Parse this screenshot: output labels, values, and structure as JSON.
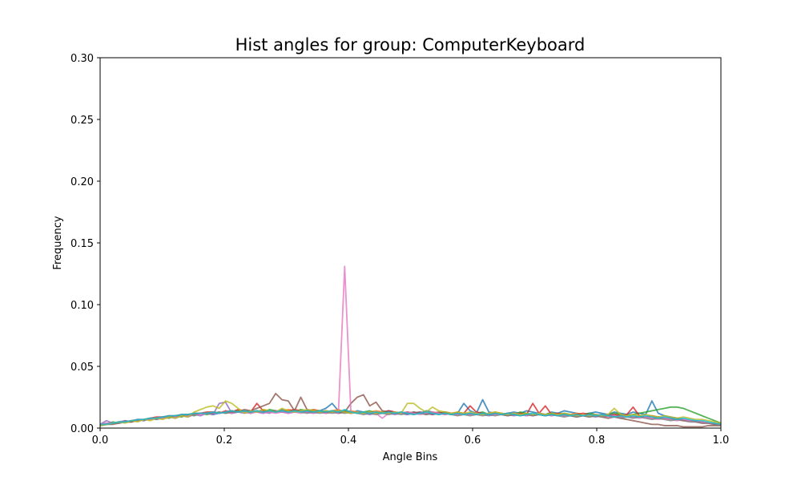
{
  "chart_data": {
    "type": "line",
    "title": "Hist angles for group: ComputerKeyboard",
    "xlabel": "Angle Bins",
    "ylabel": "Frequency",
    "xlim": [
      0.0,
      1.0
    ],
    "ylim": [
      0.0,
      0.3
    ],
    "x_ticks": [
      "0.0",
      "0.2",
      "0.4",
      "0.6",
      "0.8",
      "1.0"
    ],
    "y_ticks": [
      "0.00",
      "0.05",
      "0.10",
      "0.15",
      "0.20",
      "0.25",
      "0.30"
    ],
    "grid": false,
    "legend": "none",
    "colors": [
      "#1f77b4",
      "#ff7f0e",
      "#2ca02c",
      "#d62728",
      "#9467bd",
      "#8c564b",
      "#e377c2",
      "#7f7f7f",
      "#bcbd22",
      "#17becf"
    ],
    "series": [
      {
        "values": [
          0.003,
          0.004,
          0.004,
          0.005,
          0.005,
          0.006,
          0.006,
          0.007,
          0.008,
          0.008,
          0.009,
          0.01,
          0.009,
          0.011,
          0.01,
          0.011,
          0.012,
          0.012,
          0.011,
          0.012,
          0.013,
          0.012,
          0.013,
          0.013,
          0.014,
          0.013,
          0.012,
          0.014,
          0.013,
          0.015,
          0.014,
          0.013,
          0.014,
          0.013,
          0.015,
          0.014,
          0.016,
          0.02,
          0.014,
          0.013,
          0.012,
          0.014,
          0.013,
          0.012,
          0.013,
          0.012,
          0.014,
          0.013,
          0.012,
          0.011,
          0.013,
          0.012,
          0.014,
          0.013,
          0.012,
          0.013,
          0.011,
          0.012,
          0.02,
          0.014,
          0.012,
          0.023,
          0.013,
          0.012,
          0.011,
          0.012,
          0.013,
          0.012,
          0.014,
          0.013,
          0.012,
          0.011,
          0.013,
          0.012,
          0.014,
          0.013,
          0.012,
          0.011,
          0.012,
          0.013,
          0.012,
          0.011,
          0.013,
          0.012,
          0.011,
          0.013,
          0.012,
          0.011,
          0.022,
          0.012,
          0.01,
          0.009,
          0.008,
          0.007,
          0.006,
          0.005,
          0.005,
          0.004,
          0.003,
          0.004
        ]
      },
      {
        "values": [
          0.002,
          0.003,
          0.004,
          0.004,
          0.005,
          0.005,
          0.006,
          0.007,
          0.007,
          0.008,
          0.008,
          0.009,
          0.01,
          0.01,
          0.011,
          0.011,
          0.012,
          0.012,
          0.013,
          0.012,
          0.013,
          0.014,
          0.013,
          0.014,
          0.014,
          0.013,
          0.015,
          0.014,
          0.013,
          0.014,
          0.015,
          0.014,
          0.013,
          0.014,
          0.015,
          0.014,
          0.013,
          0.014,
          0.015,
          0.013,
          0.014,
          0.013,
          0.012,
          0.013,
          0.014,
          0.013,
          0.012,
          0.013,
          0.012,
          0.013,
          0.012,
          0.013,
          0.012,
          0.013,
          0.012,
          0.011,
          0.012,
          0.013,
          0.012,
          0.011,
          0.012,
          0.011,
          0.012,
          0.013,
          0.012,
          0.011,
          0.012,
          0.011,
          0.012,
          0.011,
          0.012,
          0.011,
          0.012,
          0.011,
          0.01,
          0.011,
          0.012,
          0.011,
          0.01,
          0.011,
          0.01,
          0.011,
          0.01,
          0.011,
          0.01,
          0.009,
          0.01,
          0.009,
          0.008,
          0.009,
          0.008,
          0.007,
          0.007,
          0.006,
          0.006,
          0.005,
          0.005,
          0.004,
          0.004,
          0.003
        ]
      },
      {
        "values": [
          0.002,
          0.003,
          0.005,
          0.004,
          0.006,
          0.005,
          0.007,
          0.006,
          0.008,
          0.007,
          0.009,
          0.008,
          0.01,
          0.009,
          0.011,
          0.01,
          0.012,
          0.011,
          0.012,
          0.013,
          0.012,
          0.013,
          0.014,
          0.013,
          0.012,
          0.014,
          0.013,
          0.015,
          0.014,
          0.013,
          0.014,
          0.013,
          0.015,
          0.014,
          0.013,
          0.014,
          0.013,
          0.014,
          0.013,
          0.014,
          0.013,
          0.012,
          0.013,
          0.014,
          0.012,
          0.013,
          0.012,
          0.013,
          0.012,
          0.013,
          0.012,
          0.013,
          0.012,
          0.011,
          0.012,
          0.013,
          0.012,
          0.011,
          0.012,
          0.011,
          0.012,
          0.013,
          0.011,
          0.012,
          0.011,
          0.012,
          0.011,
          0.013,
          0.012,
          0.011,
          0.012,
          0.011,
          0.012,
          0.011,
          0.012,
          0.011,
          0.01,
          0.011,
          0.012,
          0.011,
          0.01,
          0.011,
          0.012,
          0.011,
          0.01,
          0.011,
          0.012,
          0.013,
          0.014,
          0.015,
          0.016,
          0.017,
          0.017,
          0.016,
          0.014,
          0.012,
          0.01,
          0.008,
          0.006,
          0.004
        ]
      },
      {
        "values": [
          0.003,
          0.003,
          0.004,
          0.005,
          0.005,
          0.006,
          0.007,
          0.007,
          0.008,
          0.009,
          0.009,
          0.01,
          0.01,
          0.011,
          0.011,
          0.012,
          0.012,
          0.013,
          0.013,
          0.012,
          0.014,
          0.013,
          0.015,
          0.014,
          0.013,
          0.02,
          0.014,
          0.013,
          0.014,
          0.013,
          0.014,
          0.015,
          0.014,
          0.013,
          0.014,
          0.013,
          0.012,
          0.013,
          0.014,
          0.013,
          0.012,
          0.013,
          0.012,
          0.013,
          0.012,
          0.013,
          0.014,
          0.013,
          0.012,
          0.013,
          0.012,
          0.013,
          0.012,
          0.011,
          0.012,
          0.013,
          0.012,
          0.011,
          0.012,
          0.018,
          0.013,
          0.012,
          0.011,
          0.012,
          0.011,
          0.012,
          0.011,
          0.012,
          0.011,
          0.02,
          0.012,
          0.018,
          0.011,
          0.012,
          0.011,
          0.01,
          0.011,
          0.012,
          0.011,
          0.01,
          0.011,
          0.01,
          0.011,
          0.01,
          0.011,
          0.017,
          0.01,
          0.009,
          0.01,
          0.009,
          0.008,
          0.008,
          0.007,
          0.006,
          0.006,
          0.005,
          0.004,
          0.004,
          0.003,
          0.003
        ]
      },
      {
        "values": [
          0.003,
          0.006,
          0.004,
          0.005,
          0.006,
          0.005,
          0.007,
          0.006,
          0.008,
          0.007,
          0.008,
          0.009,
          0.008,
          0.01,
          0.009,
          0.011,
          0.01,
          0.012,
          0.011,
          0.02,
          0.021,
          0.012,
          0.013,
          0.012,
          0.013,
          0.014,
          0.013,
          0.012,
          0.014,
          0.013,
          0.012,
          0.013,
          0.014,
          0.013,
          0.012,
          0.013,
          0.014,
          0.013,
          0.012,
          0.013,
          0.012,
          0.013,
          0.012,
          0.011,
          0.012,
          0.013,
          0.012,
          0.011,
          0.012,
          0.011,
          0.012,
          0.013,
          0.012,
          0.011,
          0.012,
          0.011,
          0.012,
          0.011,
          0.012,
          0.011,
          0.012,
          0.011,
          0.01,
          0.011,
          0.012,
          0.011,
          0.01,
          0.011,
          0.01,
          0.011,
          0.012,
          0.011,
          0.01,
          0.011,
          0.01,
          0.011,
          0.01,
          0.011,
          0.01,
          0.009,
          0.01,
          0.011,
          0.01,
          0.009,
          0.01,
          0.009,
          0.01,
          0.009,
          0.008,
          0.009,
          0.008,
          0.007,
          0.008,
          0.007,
          0.006,
          0.006,
          0.005,
          0.004,
          0.004,
          0.003
        ]
      },
      {
        "values": [
          0.002,
          0.003,
          0.003,
          0.004,
          0.005,
          0.005,
          0.006,
          0.007,
          0.007,
          0.008,
          0.009,
          0.009,
          0.01,
          0.01,
          0.011,
          0.011,
          0.012,
          0.012,
          0.013,
          0.012,
          0.013,
          0.014,
          0.013,
          0.015,
          0.014,
          0.016,
          0.018,
          0.02,
          0.028,
          0.023,
          0.022,
          0.014,
          0.025,
          0.015,
          0.014,
          0.013,
          0.014,
          0.013,
          0.012,
          0.013,
          0.02,
          0.025,
          0.027,
          0.018,
          0.021,
          0.014,
          0.013,
          0.012,
          0.013,
          0.012,
          0.013,
          0.012,
          0.011,
          0.012,
          0.013,
          0.012,
          0.011,
          0.012,
          0.011,
          0.012,
          0.011,
          0.012,
          0.011,
          0.012,
          0.011,
          0.01,
          0.011,
          0.012,
          0.011,
          0.01,
          0.011,
          0.01,
          0.011,
          0.01,
          0.011,
          0.01,
          0.009,
          0.01,
          0.009,
          0.01,
          0.009,
          0.008,
          0.009,
          0.008,
          0.007,
          0.006,
          0.005,
          0.004,
          0.003,
          0.003,
          0.002,
          0.002,
          0.002,
          0.001,
          0.001,
          0.001,
          0.001,
          0.002,
          0.002,
          0.002
        ]
      },
      {
        "values": [
          0.003,
          0.004,
          0.004,
          0.005,
          0.005,
          0.006,
          0.006,
          0.007,
          0.007,
          0.008,
          0.008,
          0.009,
          0.009,
          0.01,
          0.01,
          0.011,
          0.011,
          0.012,
          0.012,
          0.012,
          0.013,
          0.012,
          0.013,
          0.013,
          0.012,
          0.013,
          0.012,
          0.013,
          0.012,
          0.013,
          0.012,
          0.013,
          0.012,
          0.013,
          0.012,
          0.013,
          0.012,
          0.013,
          0.012,
          0.131,
          0.012,
          0.013,
          0.012,
          0.013,
          0.012,
          0.008,
          0.012,
          0.013,
          0.012,
          0.013,
          0.012,
          0.011,
          0.012,
          0.013,
          0.012,
          0.011,
          0.012,
          0.011,
          0.012,
          0.011,
          0.012,
          0.011,
          0.012,
          0.011,
          0.012,
          0.011,
          0.012,
          0.011,
          0.01,
          0.011,
          0.012,
          0.011,
          0.01,
          0.011,
          0.01,
          0.011,
          0.01,
          0.011,
          0.01,
          0.011,
          0.01,
          0.009,
          0.01,
          0.009,
          0.01,
          0.009,
          0.008,
          0.009,
          0.008,
          0.007,
          0.008,
          0.007,
          0.006,
          0.007,
          0.006,
          0.005,
          0.005,
          0.004,
          0.004,
          0.003
        ]
      },
      {
        "values": [
          0.002,
          0.003,
          0.004,
          0.004,
          0.005,
          0.006,
          0.006,
          0.007,
          0.008,
          0.008,
          0.009,
          0.009,
          0.01,
          0.01,
          0.011,
          0.011,
          0.012,
          0.012,
          0.012,
          0.013,
          0.012,
          0.013,
          0.013,
          0.014,
          0.013,
          0.014,
          0.013,
          0.014,
          0.013,
          0.014,
          0.013,
          0.014,
          0.013,
          0.012,
          0.013,
          0.012,
          0.013,
          0.012,
          0.013,
          0.012,
          0.013,
          0.012,
          0.011,
          0.012,
          0.011,
          0.012,
          0.011,
          0.012,
          0.011,
          0.012,
          0.011,
          0.012,
          0.011,
          0.012,
          0.011,
          0.012,
          0.011,
          0.01,
          0.011,
          0.01,
          0.011,
          0.01,
          0.011,
          0.01,
          0.011,
          0.01,
          0.011,
          0.01,
          0.011,
          0.01,
          0.011,
          0.01,
          0.011,
          0.01,
          0.009,
          0.01,
          0.009,
          0.01,
          0.009,
          0.01,
          0.009,
          0.01,
          0.009,
          0.008,
          0.009,
          0.008,
          0.009,
          0.008,
          0.007,
          0.008,
          0.007,
          0.006,
          0.007,
          0.006,
          0.005,
          0.005,
          0.004,
          0.004,
          0.003,
          0.003
        ]
      },
      {
        "values": [
          0.002,
          0.003,
          0.004,
          0.005,
          0.004,
          0.006,
          0.005,
          0.007,
          0.006,
          0.008,
          0.007,
          0.009,
          0.008,
          0.01,
          0.009,
          0.013,
          0.015,
          0.017,
          0.018,
          0.016,
          0.022,
          0.02,
          0.016,
          0.012,
          0.014,
          0.013,
          0.015,
          0.014,
          0.013,
          0.016,
          0.014,
          0.013,
          0.014,
          0.015,
          0.014,
          0.013,
          0.014,
          0.013,
          0.014,
          0.013,
          0.012,
          0.013,
          0.012,
          0.013,
          0.012,
          0.013,
          0.012,
          0.013,
          0.012,
          0.02,
          0.02,
          0.016,
          0.013,
          0.017,
          0.014,
          0.013,
          0.012,
          0.013,
          0.012,
          0.013,
          0.012,
          0.011,
          0.012,
          0.013,
          0.012,
          0.011,
          0.012,
          0.011,
          0.012,
          0.011,
          0.012,
          0.011,
          0.012,
          0.011,
          0.012,
          0.011,
          0.01,
          0.011,
          0.01,
          0.011,
          0.01,
          0.011,
          0.016,
          0.011,
          0.01,
          0.011,
          0.01,
          0.011,
          0.01,
          0.009,
          0.01,
          0.009,
          0.008,
          0.009,
          0.008,
          0.007,
          0.007,
          0.006,
          0.005,
          0.004
        ]
      },
      {
        "values": [
          0.003,
          0.003,
          0.004,
          0.005,
          0.005,
          0.006,
          0.007,
          0.007,
          0.008,
          0.008,
          0.009,
          0.01,
          0.01,
          0.011,
          0.011,
          0.012,
          0.012,
          0.012,
          0.013,
          0.012,
          0.013,
          0.014,
          0.013,
          0.014,
          0.013,
          0.014,
          0.013,
          0.014,
          0.013,
          0.014,
          0.013,
          0.014,
          0.013,
          0.014,
          0.013,
          0.014,
          0.013,
          0.014,
          0.013,
          0.015,
          0.013,
          0.012,
          0.013,
          0.012,
          0.013,
          0.012,
          0.013,
          0.012,
          0.013,
          0.012,
          0.011,
          0.012,
          0.013,
          0.012,
          0.011,
          0.012,
          0.011,
          0.012,
          0.011,
          0.012,
          0.011,
          0.012,
          0.011,
          0.012,
          0.011,
          0.012,
          0.011,
          0.01,
          0.011,
          0.012,
          0.011,
          0.01,
          0.011,
          0.01,
          0.011,
          0.01,
          0.011,
          0.01,
          0.011,
          0.01,
          0.011,
          0.01,
          0.009,
          0.01,
          0.009,
          0.01,
          0.009,
          0.01,
          0.009,
          0.008,
          0.009,
          0.008,
          0.007,
          0.008,
          0.007,
          0.006,
          0.006,
          0.005,
          0.004,
          0.003
        ]
      }
    ]
  }
}
